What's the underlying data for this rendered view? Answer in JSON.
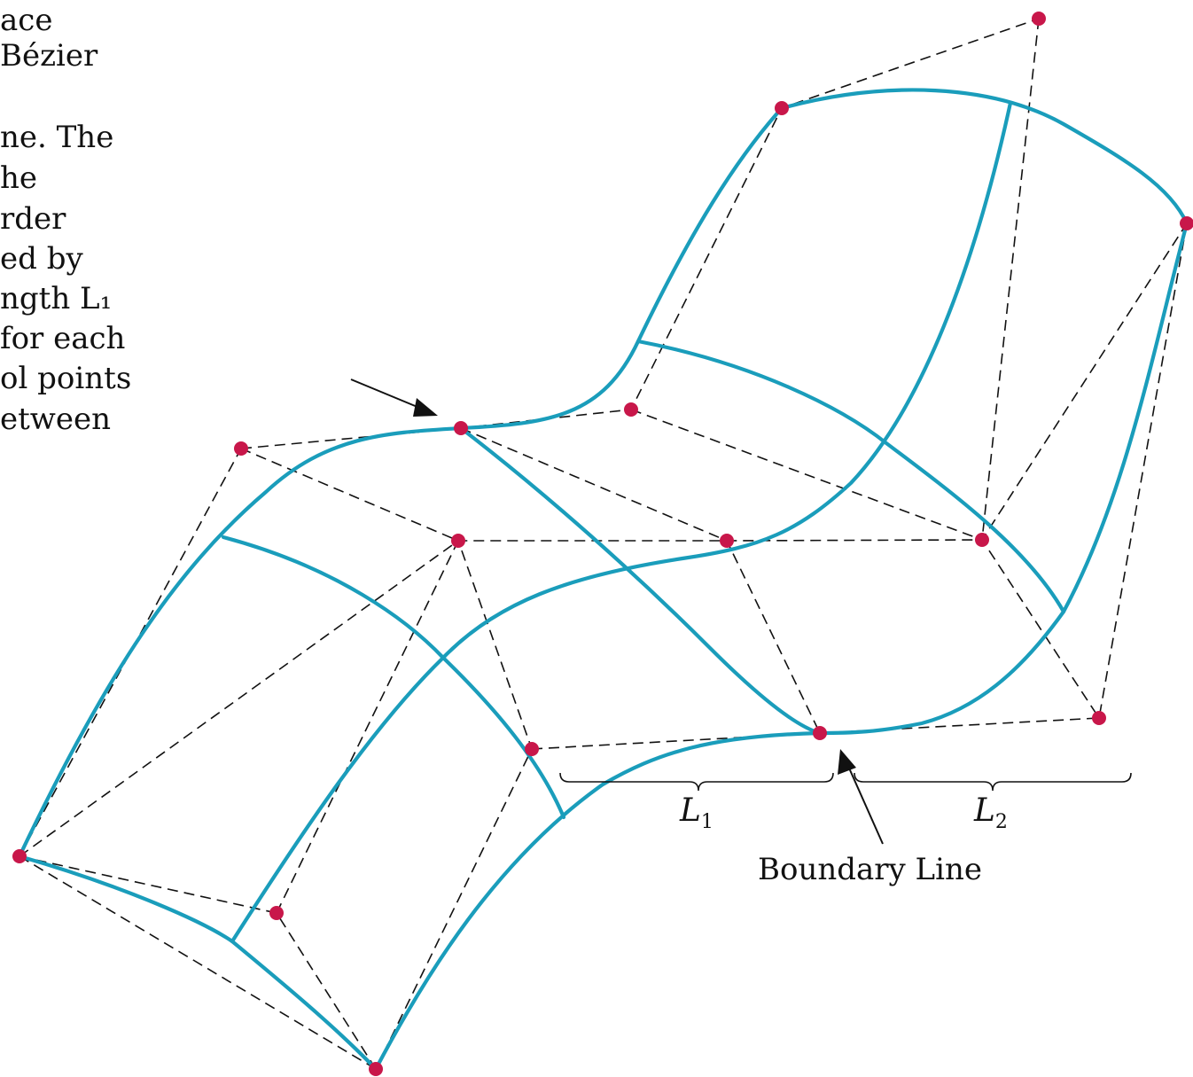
{
  "caption_fragment": {
    "lines": [
      "ace",
      "Bézier",
      "",
      "ne. The",
      "he",
      "rder",
      "ed by",
      "ngth L₁",
      "for each",
      "ol points",
      "etween"
    ]
  },
  "labels": {
    "l1": "L",
    "l1_sub": "1",
    "l2": "L",
    "l2_sub": "2",
    "boundary_line": "Boundary Line"
  },
  "colors": {
    "surface": "#1a9dbb",
    "control_point": "#c8174a",
    "control_polygon": "#111111"
  }
}
